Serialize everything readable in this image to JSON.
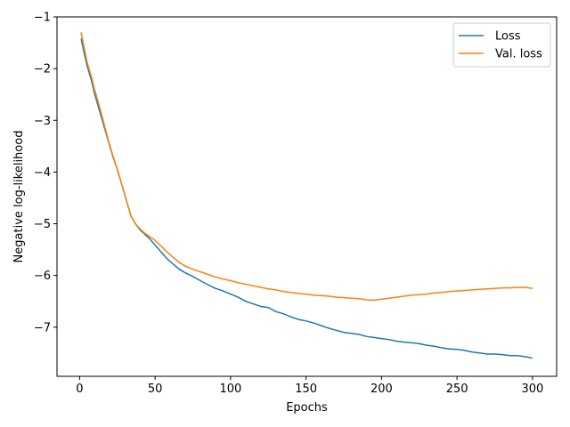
{
  "chart_data": {
    "type": "line",
    "xlabel": "Epochs",
    "ylabel": "Negative log-likelihood",
    "xlim": [
      -15,
      316
    ],
    "ylim": [
      -7.95,
      -1.0
    ],
    "xticks": [
      0,
      50,
      100,
      150,
      200,
      250,
      300
    ],
    "yticks": [
      -7,
      -6,
      -5,
      -4,
      -3,
      -2,
      -1
    ],
    "grid": false,
    "legend_position": "top-right",
    "series": [
      {
        "name": "Loss",
        "color": "#1f77b4",
        "points": [
          [
            1,
            -1.42
          ],
          [
            3,
            -1.7
          ],
          [
            5,
            -1.95
          ],
          [
            8,
            -2.25
          ],
          [
            10,
            -2.5
          ],
          [
            13,
            -2.8
          ],
          [
            16,
            -3.1
          ],
          [
            19,
            -3.4
          ],
          [
            22,
            -3.7
          ],
          [
            25,
            -3.95
          ],
          [
            28,
            -4.25
          ],
          [
            31,
            -4.55
          ],
          [
            34,
            -4.85
          ],
          [
            37,
            -5.0
          ],
          [
            40,
            -5.12
          ],
          [
            43,
            -5.2
          ],
          [
            46,
            -5.28
          ],
          [
            49,
            -5.38
          ],
          [
            52,
            -5.48
          ],
          [
            55,
            -5.58
          ],
          [
            58,
            -5.68
          ],
          [
            62,
            -5.78
          ],
          [
            66,
            -5.88
          ],
          [
            70,
            -5.95
          ],
          [
            75,
            -6.02
          ],
          [
            80,
            -6.1
          ],
          [
            85,
            -6.18
          ],
          [
            90,
            -6.25
          ],
          [
            95,
            -6.3
          ],
          [
            100,
            -6.36
          ],
          [
            105,
            -6.42
          ],
          [
            110,
            -6.5
          ],
          [
            115,
            -6.55
          ],
          [
            120,
            -6.6
          ],
          [
            125,
            -6.62
          ],
          [
            130,
            -6.7
          ],
          [
            135,
            -6.74
          ],
          [
            140,
            -6.8
          ],
          [
            145,
            -6.85
          ],
          [
            150,
            -6.88
          ],
          [
            155,
            -6.92
          ],
          [
            160,
            -6.97
          ],
          [
            165,
            -7.02
          ],
          [
            170,
            -7.06
          ],
          [
            175,
            -7.1
          ],
          [
            180,
            -7.12
          ],
          [
            185,
            -7.14
          ],
          [
            190,
            -7.18
          ],
          [
            195,
            -7.2
          ],
          [
            200,
            -7.22
          ],
          [
            205,
            -7.24
          ],
          [
            210,
            -7.27
          ],
          [
            215,
            -7.29
          ],
          [
            220,
            -7.3
          ],
          [
            225,
            -7.32
          ],
          [
            230,
            -7.35
          ],
          [
            235,
            -7.37
          ],
          [
            240,
            -7.4
          ],
          [
            245,
            -7.42
          ],
          [
            250,
            -7.43
          ],
          [
            255,
            -7.45
          ],
          [
            260,
            -7.48
          ],
          [
            265,
            -7.5
          ],
          [
            270,
            -7.52
          ],
          [
            275,
            -7.52
          ],
          [
            280,
            -7.53
          ],
          [
            285,
            -7.55
          ],
          [
            290,
            -7.55
          ],
          [
            295,
            -7.57
          ],
          [
            300,
            -7.6
          ]
        ]
      },
      {
        "name": "Val. loss",
        "color": "#ff7f0e",
        "points": [
          [
            1,
            -1.3
          ],
          [
            3,
            -1.6
          ],
          [
            5,
            -1.88
          ],
          [
            8,
            -2.18
          ],
          [
            10,
            -2.42
          ],
          [
            13,
            -2.72
          ],
          [
            16,
            -3.05
          ],
          [
            19,
            -3.38
          ],
          [
            22,
            -3.68
          ],
          [
            25,
            -3.95
          ],
          [
            28,
            -4.25
          ],
          [
            31,
            -4.55
          ],
          [
            34,
            -4.85
          ],
          [
            37,
            -5.0
          ],
          [
            40,
            -5.1
          ],
          [
            43,
            -5.18
          ],
          [
            46,
            -5.24
          ],
          [
            49,
            -5.3
          ],
          [
            52,
            -5.38
          ],
          [
            55,
            -5.46
          ],
          [
            58,
            -5.55
          ],
          [
            62,
            -5.65
          ],
          [
            66,
            -5.75
          ],
          [
            70,
            -5.82
          ],
          [
            75,
            -5.88
          ],
          [
            80,
            -5.93
          ],
          [
            85,
            -5.98
          ],
          [
            90,
            -6.03
          ],
          [
            95,
            -6.07
          ],
          [
            100,
            -6.1
          ],
          [
            105,
            -6.14
          ],
          [
            110,
            -6.17
          ],
          [
            115,
            -6.2
          ],
          [
            120,
            -6.23
          ],
          [
            125,
            -6.26
          ],
          [
            130,
            -6.28
          ],
          [
            135,
            -6.31
          ],
          [
            140,
            -6.33
          ],
          [
            145,
            -6.35
          ],
          [
            150,
            -6.36
          ],
          [
            155,
            -6.38
          ],
          [
            160,
            -6.39
          ],
          [
            165,
            -6.4
          ],
          [
            170,
            -6.42
          ],
          [
            175,
            -6.43
          ],
          [
            180,
            -6.44
          ],
          [
            185,
            -6.45
          ],
          [
            190,
            -6.47
          ],
          [
            195,
            -6.48
          ],
          [
            200,
            -6.46
          ],
          [
            205,
            -6.44
          ],
          [
            210,
            -6.42
          ],
          [
            215,
            -6.4
          ],
          [
            220,
            -6.38
          ],
          [
            225,
            -6.37
          ],
          [
            230,
            -6.36
          ],
          [
            235,
            -6.34
          ],
          [
            240,
            -6.33
          ],
          [
            245,
            -6.31
          ],
          [
            250,
            -6.3
          ],
          [
            255,
            -6.29
          ],
          [
            260,
            -6.28
          ],
          [
            265,
            -6.27
          ],
          [
            270,
            -6.26
          ],
          [
            275,
            -6.25
          ],
          [
            280,
            -6.24
          ],
          [
            285,
            -6.24
          ],
          [
            290,
            -6.23
          ],
          [
            295,
            -6.23
          ],
          [
            300,
            -6.25
          ]
        ]
      }
    ]
  }
}
